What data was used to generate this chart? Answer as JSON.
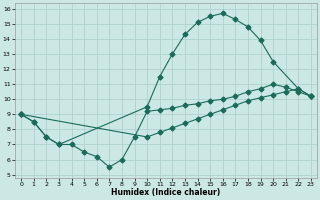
{
  "xlabel": "Humidex (Indice chaleur)",
  "xlim": [
    -0.5,
    23.5
  ],
  "ylim": [
    4.8,
    16.4
  ],
  "xticks": [
    0,
    1,
    2,
    3,
    4,
    5,
    6,
    7,
    8,
    9,
    10,
    11,
    12,
    13,
    14,
    15,
    16,
    17,
    18,
    19,
    20,
    21,
    22,
    23
  ],
  "yticks": [
    5,
    6,
    7,
    8,
    9,
    10,
    11,
    12,
    13,
    14,
    15,
    16
  ],
  "bg_color": "#cce8e4",
  "grid_color": "#aacfcb",
  "line_color": "#1a6b5a",
  "line1_x": [
    0,
    1,
    2,
    3,
    10,
    11,
    12,
    13,
    14,
    15,
    16,
    17,
    18,
    19,
    20,
    22,
    23
  ],
  "line1_y": [
    9.0,
    8.5,
    7.5,
    7.0,
    9.5,
    11.5,
    13.0,
    14.3,
    15.1,
    15.5,
    15.7,
    15.3,
    14.8,
    13.9,
    12.5,
    10.7,
    10.2
  ],
  "line2_x": [
    0,
    1,
    2,
    3,
    4,
    5,
    6,
    7,
    8,
    9,
    10,
    11,
    12,
    13,
    14,
    15,
    16,
    17,
    18,
    19,
    20,
    21,
    22,
    23
  ],
  "line2_y": [
    9.0,
    8.5,
    7.5,
    7.0,
    7.0,
    6.5,
    6.2,
    5.5,
    6.0,
    7.5,
    9.2,
    9.3,
    9.4,
    9.6,
    9.7,
    9.9,
    10.0,
    10.2,
    10.5,
    10.7,
    11.0,
    10.8,
    10.5,
    10.2
  ],
  "line3_x": [
    0,
    10,
    11,
    12,
    13,
    14,
    15,
    16,
    17,
    18,
    19,
    20,
    21,
    22,
    23
  ],
  "line3_y": [
    9.0,
    7.5,
    7.8,
    8.1,
    8.4,
    8.7,
    9.0,
    9.3,
    9.6,
    9.9,
    10.1,
    10.3,
    10.5,
    10.7,
    10.2
  ]
}
